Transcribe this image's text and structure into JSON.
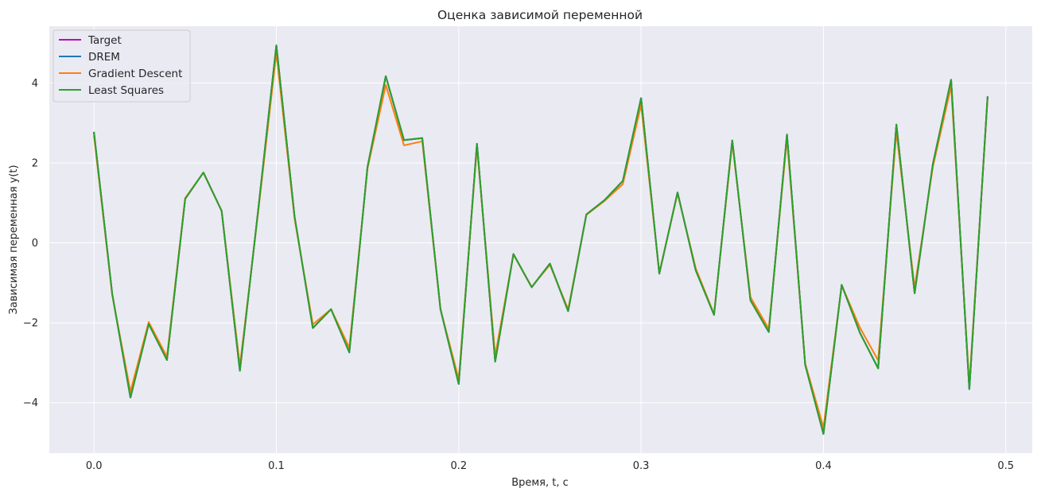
{
  "chart_data": {
    "type": "line",
    "title": "Оценка зависимой переменной",
    "xlabel": "Время, t, c",
    "ylabel": "Зависимая переменная y(t)",
    "xlim": [
      -0.0245,
      0.5145
    ],
    "ylim": [
      -5.26,
      5.42
    ],
    "xticks": [
      0.0,
      0.1,
      0.2,
      0.3,
      0.4,
      0.5
    ],
    "xtick_labels": [
      "0.0",
      "0.1",
      "0.2",
      "0.3",
      "0.4",
      "0.5"
    ],
    "yticks": [
      -4,
      -2,
      0,
      2,
      4
    ],
    "ytick_labels": [
      "−4",
      "−2",
      "0",
      "2",
      "4"
    ],
    "grid": true,
    "legend_position": "top-left",
    "x": [
      0.0,
      0.01,
      0.02,
      0.03,
      0.04,
      0.05,
      0.06,
      0.07,
      0.08,
      0.09,
      0.1,
      0.11,
      0.12,
      0.13,
      0.14,
      0.15,
      0.16,
      0.17,
      0.18,
      0.19,
      0.2,
      0.21,
      0.22,
      0.23,
      0.24,
      0.25,
      0.26,
      0.27,
      0.28,
      0.29,
      0.3,
      0.31,
      0.32,
      0.33,
      0.34,
      0.35,
      0.36,
      0.37,
      0.38,
      0.39,
      0.4,
      0.41,
      0.42,
      0.43,
      0.44,
      0.45,
      0.46,
      0.47,
      0.48,
      0.49
    ],
    "series": [
      {
        "name": "Target",
        "color": "#bf00bf",
        "values": [
          2.76,
          -1.28,
          -3.87,
          -2.03,
          -2.93,
          1.1,
          1.76,
          0.8,
          -3.2,
          0.8,
          4.94,
          0.65,
          -2.13,
          -1.66,
          -2.74,
          1.9,
          4.17,
          2.57,
          2.62,
          -1.66,
          -3.53,
          2.48,
          -2.97,
          -0.28,
          -1.11,
          -0.52,
          -1.71,
          0.71,
          1.07,
          1.55,
          3.62,
          -0.77,
          1.26,
          -0.69,
          -1.8,
          2.56,
          -1.44,
          -2.23,
          2.71,
          -3.05,
          -4.78,
          -1.05,
          -2.25,
          -3.14,
          2.96,
          -1.26,
          1.97,
          4.08,
          -3.66,
          3.65
        ]
      },
      {
        "name": "DREM",
        "color": "#1f77b4",
        "values": [
          2.76,
          -1.28,
          -3.87,
          -2.03,
          -2.93,
          1.1,
          1.76,
          0.8,
          -3.2,
          0.8,
          4.94,
          0.65,
          -2.13,
          -1.66,
          -2.74,
          1.9,
          4.17,
          2.57,
          2.62,
          -1.66,
          -3.53,
          2.48,
          -2.97,
          -0.28,
          -1.11,
          -0.52,
          -1.71,
          0.71,
          1.07,
          1.55,
          3.62,
          -0.77,
          1.26,
          -0.69,
          -1.8,
          2.56,
          -1.44,
          -2.23,
          2.71,
          -3.05,
          -4.78,
          -1.05,
          -2.25,
          -3.14,
          2.96,
          -1.26,
          1.97,
          4.08,
          -3.66,
          3.65
        ]
      },
      {
        "name": "Gradient Descent",
        "color": "#ff7f0e",
        "values": [
          2.68,
          -1.3,
          -3.72,
          -1.98,
          -2.85,
          1.12,
          1.76,
          0.8,
          -3.08,
          0.75,
          4.75,
          0.6,
          -2.04,
          -1.66,
          -2.62,
          1.86,
          3.95,
          2.44,
          2.54,
          -1.66,
          -3.41,
          2.4,
          -2.82,
          -0.29,
          -1.1,
          -0.55,
          -1.66,
          0.7,
          1.05,
          1.47,
          3.45,
          -0.75,
          1.24,
          -0.64,
          -1.78,
          2.5,
          -1.36,
          -2.15,
          2.6,
          -3.02,
          -4.62,
          -1.06,
          -2.12,
          -2.94,
          2.78,
          -1.12,
          1.9,
          3.92,
          -3.55,
          3.6
        ]
      },
      {
        "name": "Least Squares",
        "color": "#2ca02c",
        "values": [
          2.76,
          -1.28,
          -3.87,
          -2.03,
          -2.93,
          1.1,
          1.76,
          0.8,
          -3.2,
          0.8,
          4.94,
          0.65,
          -2.13,
          -1.66,
          -2.74,
          1.9,
          4.17,
          2.57,
          2.62,
          -1.66,
          -3.53,
          2.48,
          -2.97,
          -0.28,
          -1.11,
          -0.52,
          -1.71,
          0.71,
          1.07,
          1.55,
          3.62,
          -0.77,
          1.26,
          -0.69,
          -1.8,
          2.56,
          -1.44,
          -2.23,
          2.71,
          -3.05,
          -4.78,
          -1.05,
          -2.25,
          -3.14,
          2.96,
          -1.26,
          1.97,
          4.08,
          -3.66,
          3.65
        ]
      }
    ],
    "colors": {
      "plot_background": "#eaeaf2",
      "grid": "#ffffff",
      "text": "#262626"
    }
  }
}
